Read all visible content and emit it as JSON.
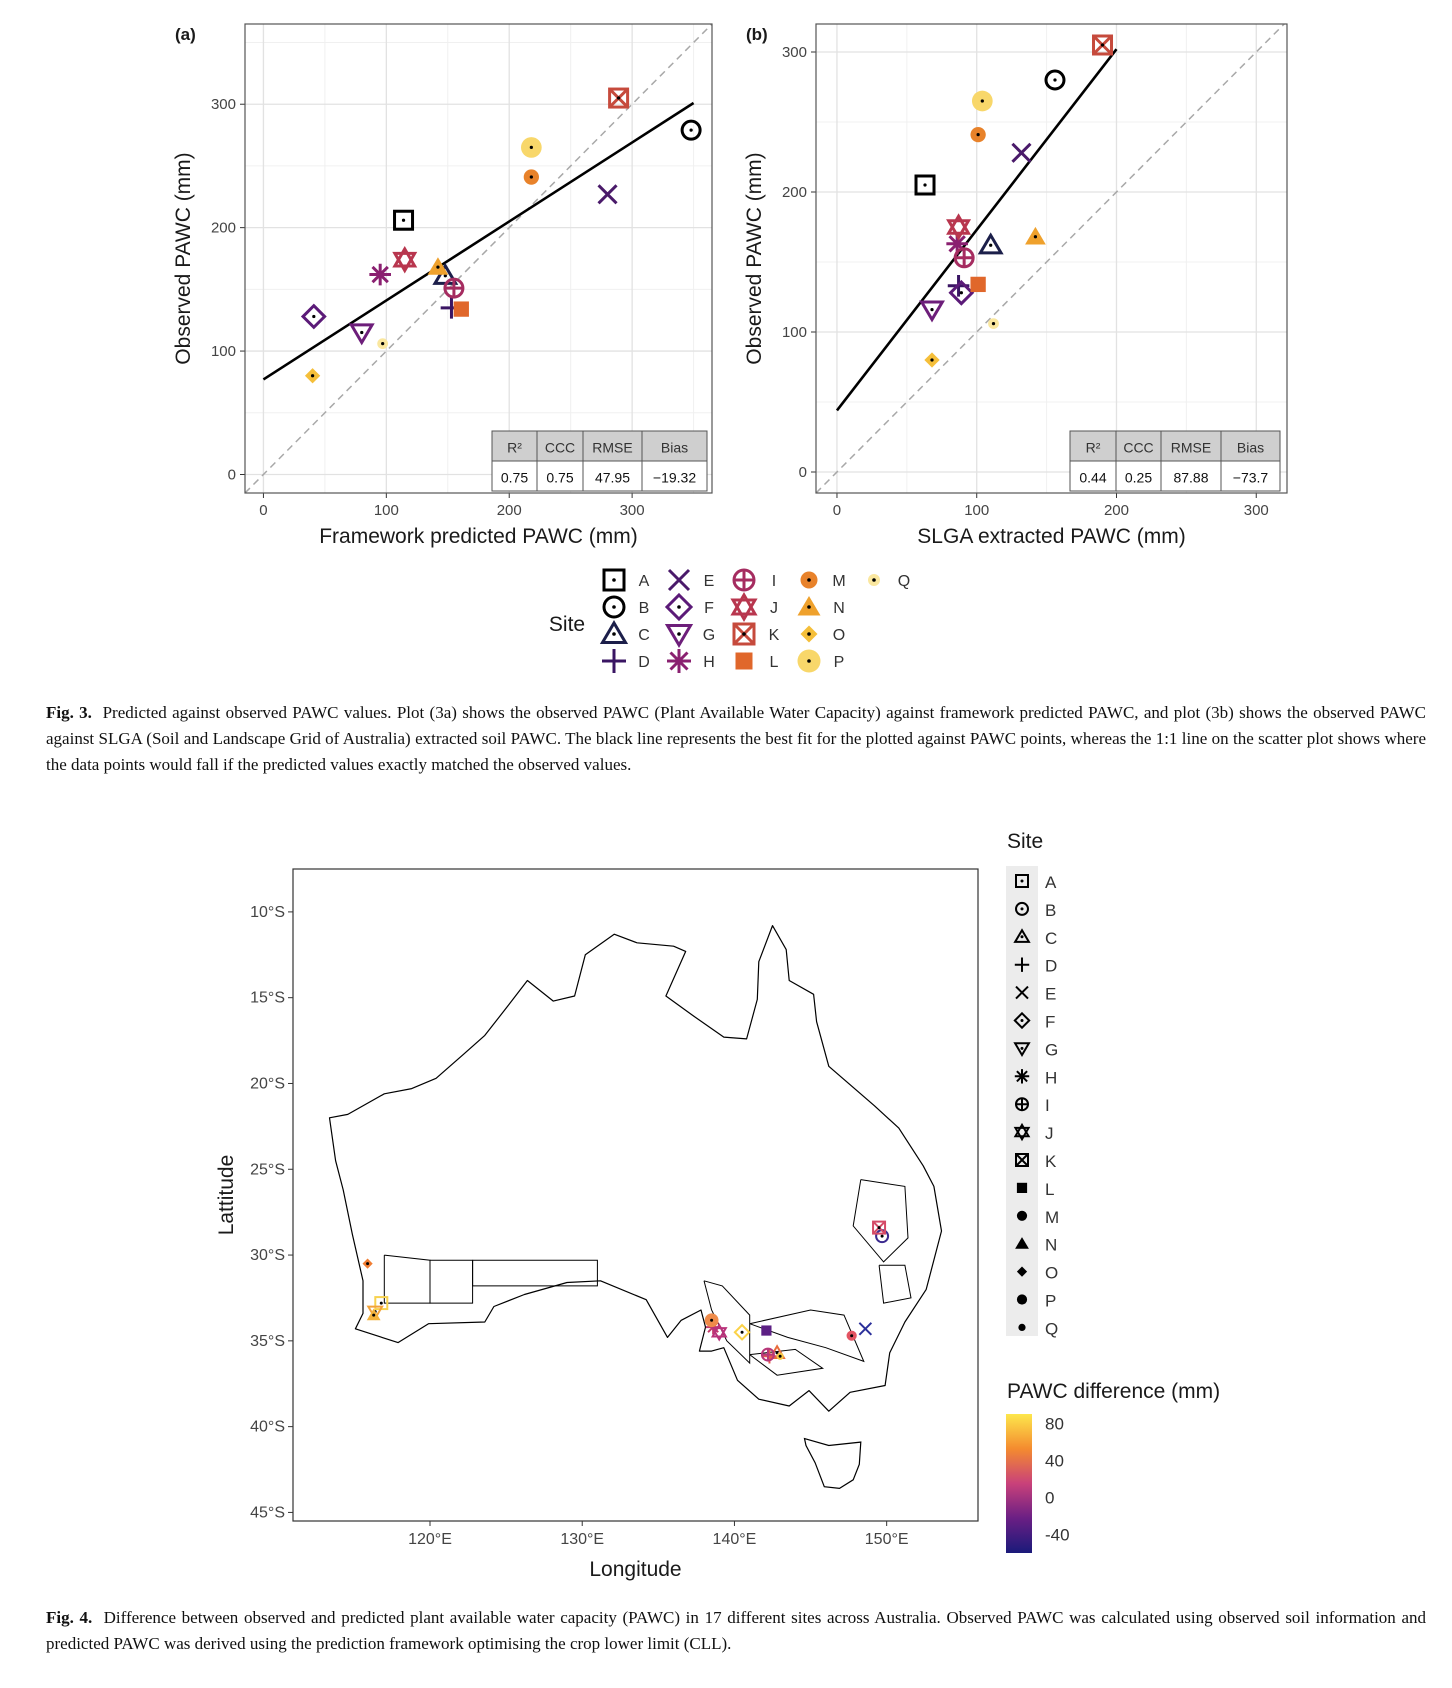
{
  "chart_data": [
    {
      "type": "scatter",
      "panel": "(a)",
      "xlabel": "Framework predicted PAWC (mm)",
      "ylabel": "Observed PAWC (mm)",
      "xlim": [
        -15,
        365
      ],
      "ylim": [
        -15,
        365
      ],
      "xticks": [
        "0",
        "100",
        "200",
        "300"
      ],
      "yticks": [
        "0",
        "100",
        "200",
        "300"
      ],
      "grid": true,
      "reference_line": "1:1",
      "fit_line": {
        "x": [
          0,
          350
        ],
        "y": [
          77,
          301
        ]
      },
      "points": [
        {
          "site": "A",
          "x": 114,
          "y": 206
        },
        {
          "site": "B",
          "x": 348,
          "y": 279
        },
        {
          "site": "C",
          "x": 148,
          "y": 161
        },
        {
          "site": "D",
          "x": 153,
          "y": 135
        },
        {
          "site": "E",
          "x": 280,
          "y": 227
        },
        {
          "site": "F",
          "x": 41,
          "y": 128
        },
        {
          "site": "G",
          "x": 80,
          "y": 115
        },
        {
          "site": "H",
          "x": 95,
          "y": 162
        },
        {
          "site": "I",
          "x": 155,
          "y": 151
        },
        {
          "site": "J",
          "x": 115,
          "y": 174
        },
        {
          "site": "K",
          "x": 289,
          "y": 305
        },
        {
          "site": "L",
          "x": 161,
          "y": 134
        },
        {
          "site": "M",
          "x": 218,
          "y": 241
        },
        {
          "site": "N",
          "x": 142,
          "y": 168
        },
        {
          "site": "O",
          "x": 40,
          "y": 80
        },
        {
          "site": "P",
          "x": 218,
          "y": 265
        },
        {
          "site": "Q",
          "x": 97,
          "y": 106
        }
      ],
      "stats_table": {
        "headers": [
          "R²",
          "CCC",
          "RMSE",
          "Bias"
        ],
        "values": [
          "0.75",
          "0.75",
          "47.95",
          "−19.32"
        ]
      }
    },
    {
      "type": "scatter",
      "panel": "(b)",
      "xlabel": "SLGA extracted PAWC (mm)",
      "ylabel": "Observed PAWC (mm)",
      "xlim": [
        -15,
        322
      ],
      "ylim": [
        -15,
        320
      ],
      "xticks": [
        "0",
        "100",
        "200",
        "300"
      ],
      "yticks": [
        "0",
        "100",
        "200",
        "300"
      ],
      "grid": true,
      "reference_line": "1:1",
      "fit_line": {
        "x": [
          0,
          200
        ],
        "y": [
          44,
          302
        ]
      },
      "points": [
        {
          "site": "A",
          "x": 63,
          "y": 205
        },
        {
          "site": "B",
          "x": 156,
          "y": 280
        },
        {
          "site": "C",
          "x": 110,
          "y": 162
        },
        {
          "site": "D",
          "x": 87,
          "y": 133
        },
        {
          "site": "E",
          "x": 132,
          "y": 228
        },
        {
          "site": "F",
          "x": 89,
          "y": 128
        },
        {
          "site": "G",
          "x": 68,
          "y": 116
        },
        {
          "site": "H",
          "x": 86,
          "y": 163
        },
        {
          "site": "I",
          "x": 91,
          "y": 153
        },
        {
          "site": "J",
          "x": 87,
          "y": 175
        },
        {
          "site": "K",
          "x": 190,
          "y": 305
        },
        {
          "site": "L",
          "x": 101,
          "y": 134
        },
        {
          "site": "M",
          "x": 101,
          "y": 241
        },
        {
          "site": "N",
          "x": 142,
          "y": 168
        },
        {
          "site": "O",
          "x": 68,
          "y": 80
        },
        {
          "site": "P",
          "x": 104,
          "y": 265
        },
        {
          "site": "Q",
          "x": 112,
          "y": 106
        }
      ],
      "stats_table": {
        "headers": [
          "R²",
          "CCC",
          "RMSE",
          "Bias"
        ],
        "values": [
          "0.44",
          "0.25",
          "87.88",
          "−73.7"
        ]
      }
    },
    {
      "type": "map",
      "xlabel": "Longitude",
      "ylabel": "Lattitude",
      "xlim": [
        111,
        156
      ],
      "ylim": [
        -45.5,
        -7.5
      ],
      "xticks": [
        "120°E",
        "130°E",
        "140°E",
        "150°E"
      ],
      "yticks": [
        "10°S",
        "15°S",
        "20°S",
        "25°S",
        "30°S",
        "35°S",
        "40°S",
        "45°S"
      ],
      "points": [
        {
          "site": "A",
          "lon": 116.8,
          "lat": -32.8,
          "color": "#f7d24e"
        },
        {
          "site": "B",
          "lon": 149.7,
          "lat": -28.9,
          "color": "#3b2a8f"
        },
        {
          "site": "C",
          "lon": 142.8,
          "lat": -35.7,
          "color": "#e86c3c"
        },
        {
          "site": "D",
          "lon": 142.3,
          "lat": -35.9,
          "color": "#e4584f"
        },
        {
          "site": "E",
          "lon": 148.6,
          "lat": -34.3,
          "color": "#2b2f9a"
        },
        {
          "site": "F",
          "lon": 140.5,
          "lat": -34.5,
          "color": "#fbd248"
        },
        {
          "site": "G",
          "lon": 116.4,
          "lat": -33.3,
          "color": "#f2a23a"
        },
        {
          "site": "H",
          "lon": 138.6,
          "lat": -34.2,
          "color": "#c43a6a"
        },
        {
          "site": "I",
          "lon": 142.2,
          "lat": -35.8,
          "color": "#b73779"
        },
        {
          "site": "J",
          "lon": 139.0,
          "lat": -34.5,
          "color": "#b9337b"
        },
        {
          "site": "K",
          "lon": 149.5,
          "lat": -28.4,
          "color": "#d54a67"
        },
        {
          "site": "L",
          "lon": 142.1,
          "lat": -34.4,
          "color": "#5c1f84"
        },
        {
          "site": "M",
          "lon": 147.7,
          "lat": -34.7,
          "color": "#e35462"
        },
        {
          "site": "N",
          "lon": 116.3,
          "lat": -33.5,
          "color": "#f4b23b"
        },
        {
          "site": "O",
          "lon": 115.9,
          "lat": -30.5,
          "color": "#f07d33"
        },
        {
          "site": "P",
          "lon": 138.5,
          "lat": -33.8,
          "color": "#ef8b4a"
        },
        {
          "site": "Q",
          "lon": 143.0,
          "lat": -35.9,
          "color": "#f7c948"
        }
      ],
      "legend_site_title": "Site",
      "colorbar": {
        "title": "PAWC difference (mm)",
        "ticks": [
          "80",
          "40",
          "0",
          "-40"
        ],
        "range": [
          -60,
          90
        ],
        "colors": [
          "#fde74c",
          "#f48b2f",
          "#c9417a",
          "#6a1f84",
          "#1a1a7a"
        ]
      }
    }
  ],
  "panel_labels": {
    "a": "(a)",
    "b": "(b)"
  },
  "site_legend": {
    "title": "Site",
    "items": [
      {
        "label": "A",
        "shape": "square",
        "color": "#000000"
      },
      {
        "label": "B",
        "shape": "circle",
        "color": "#000000"
      },
      {
        "label": "C",
        "shape": "triangle",
        "color": "#1c1f4a"
      },
      {
        "label": "D",
        "shape": "plus",
        "color": "#3a1563"
      },
      {
        "label": "E",
        "shape": "cross",
        "color": "#4a1a6a"
      },
      {
        "label": "F",
        "shape": "diamond",
        "color": "#5b1a78"
      },
      {
        "label": "G",
        "shape": "triangle-down",
        "color": "#6d1e7a"
      },
      {
        "label": "H",
        "shape": "asterisk",
        "color": "#8a2070"
      },
      {
        "label": "I",
        "shape": "circle-plus",
        "color": "#a52c60"
      },
      {
        "label": "J",
        "shape": "star-david",
        "color": "#b8364e"
      },
      {
        "label": "K",
        "shape": "square-cross",
        "color": "#c64a3c"
      },
      {
        "label": "L",
        "shape": "filled-square",
        "color": "#e0672b"
      },
      {
        "label": "M",
        "shape": "filled-circle",
        "color": "#e8822a"
      },
      {
        "label": "N",
        "shape": "filled-triangle",
        "color": "#efa12c"
      },
      {
        "label": "O",
        "shape": "filled-diamond",
        "color": "#f5bf3a"
      },
      {
        "label": "P",
        "shape": "big-circle",
        "color": "#f8d76a"
      },
      {
        "label": "Q",
        "shape": "small-circle",
        "color": "#fae79f"
      }
    ]
  },
  "captions": {
    "fig3_label": "Fig. 3.",
    "fig3_text": "Predicted against observed PAWC values. Plot (3a) shows the observed PAWC (Plant Available Water Capacity) against framework predicted PAWC, and plot (3b) shows the observed PAWC against SLGA (Soil and Landscape Grid of Australia) extracted soil PAWC. The black line represents the best fit for the plotted against PAWC points, whereas the 1:1 line on the scatter plot shows where the data points would fall if the predicted values exactly matched the observed values.",
    "fig4_label": "Fig. 4.",
    "fig4_text": "Difference between observed and predicted plant available water capacity (PAWC) in 17 different sites across Australia. Observed PAWC was calculated using observed soil information and predicted PAWC was derived using the prediction framework optimising the crop lower limit (CLL)."
  }
}
